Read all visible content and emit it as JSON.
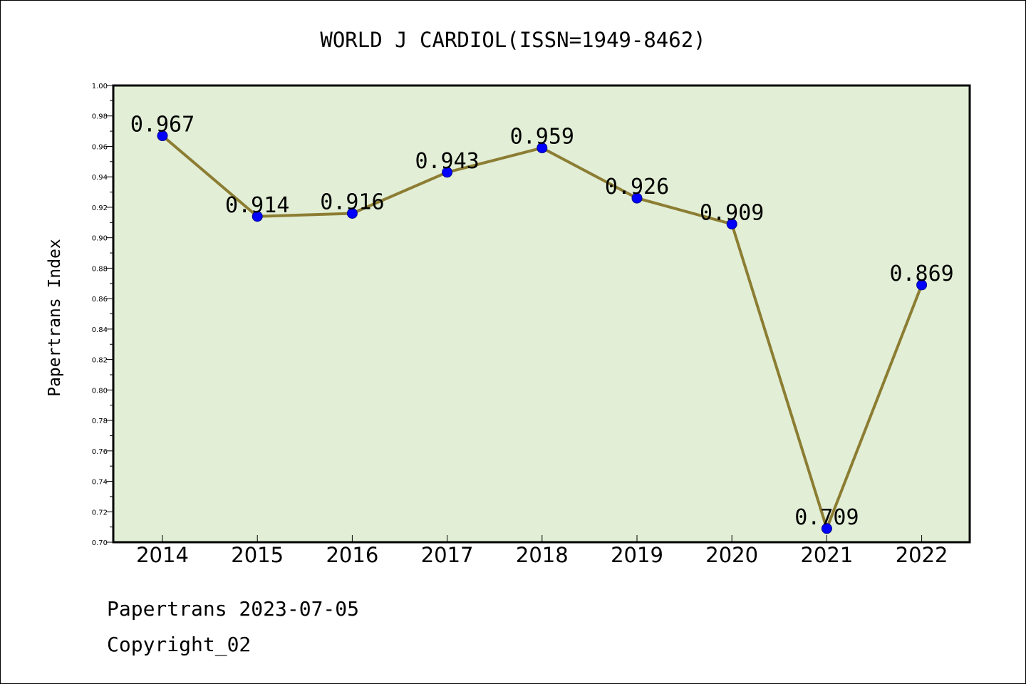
{
  "chart_data": {
    "type": "line",
    "title": "WORLD J CARDIOL(ISSN=1949-8462)",
    "xlabel": "",
    "ylabel": "Papertrans Index",
    "categories": [
      "2014",
      "2015",
      "2016",
      "2017",
      "2018",
      "2019",
      "2020",
      "2021",
      "2022"
    ],
    "series": [
      {
        "values": [
          0.967,
          0.914,
          0.916,
          0.943,
          0.959,
          0.926,
          0.909,
          0.709,
          0.869
        ],
        "data_labels": [
          "0.967",
          "0.914",
          "0.916",
          "0.943",
          "0.959",
          "0.926",
          "0.909",
          "0.709",
          "0.869"
        ]
      }
    ],
    "ylim": [
      0.7,
      1.0
    ],
    "y_ticks": [
      "0.70",
      "0.72",
      "0.74",
      "0.76",
      "0.78",
      "0.80",
      "0.82",
      "0.84",
      "0.86",
      "0.88",
      "0.90",
      "0.92",
      "0.94",
      "0.96",
      "0.98",
      "1.00"
    ],
    "grid": false,
    "legend": "none",
    "colors": {
      "plot_background": "#e2efd6",
      "line": "#8c7d33",
      "marker_fill": "#0000ff",
      "marker_stroke": "#00008b"
    }
  },
  "footer": {
    "line1": "Papertrans 2023-07-05",
    "line2": "Copyright_02"
  }
}
